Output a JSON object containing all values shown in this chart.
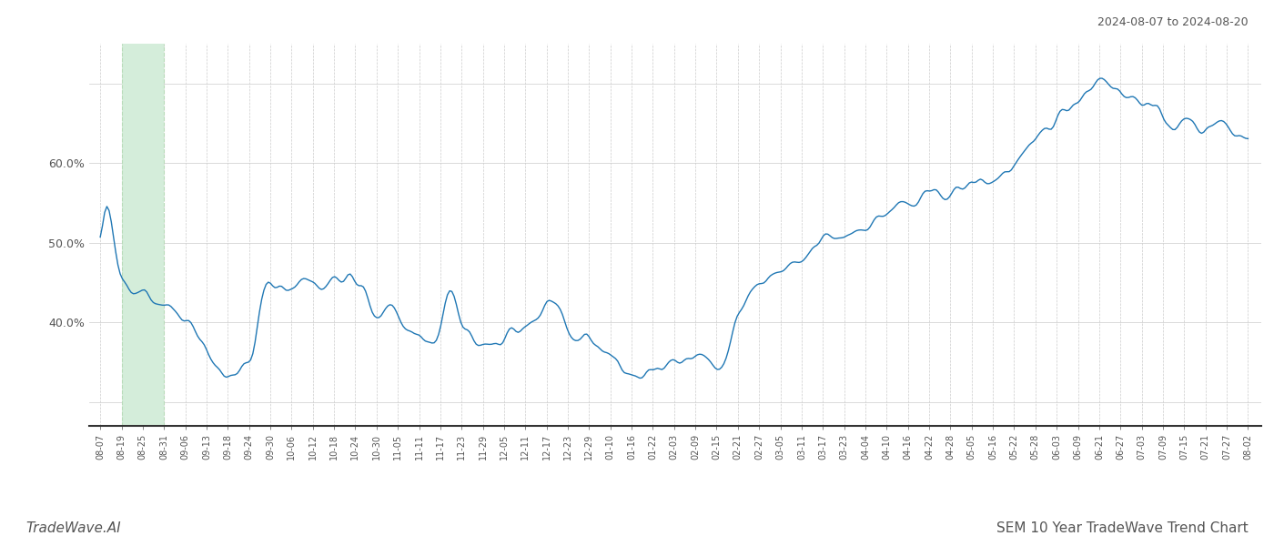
{
  "title_right": "2024-08-07 to 2024-08-20",
  "footer_left": "TradeWave.AI",
  "footer_right": "SEM 10 Year TradeWave Trend Chart",
  "line_color": "#1f77b4",
  "highlight_color": "#d4edda",
  "highlight_edge_color": "#b8dbb8",
  "background_color": "#ffffff",
  "grid_color": "#cccccc",
  "y_ticks": [
    0.3,
    0.4,
    0.5,
    0.6,
    0.7
  ],
  "y_labels": [
    "",
    "40.0%",
    "50.0%",
    "60.0%",
    ""
  ],
  "ylim": [
    0.27,
    0.75
  ],
  "x_tick_labels": [
    "08-07",
    "08-19",
    "08-25",
    "08-31",
    "09-06",
    "09-13",
    "09-18",
    "09-24",
    "09-30",
    "10-06",
    "10-12",
    "10-18",
    "10-24",
    "10-30",
    "11-05",
    "11-11",
    "11-17",
    "11-23",
    "11-29",
    "12-05",
    "12-11",
    "12-17",
    "12-23",
    "12-29",
    "01-10",
    "01-16",
    "01-22",
    "02-03",
    "02-09",
    "02-15",
    "02-21",
    "02-27",
    "03-05",
    "03-11",
    "03-17",
    "03-23",
    "04-04",
    "04-10",
    "04-16",
    "04-22",
    "04-28",
    "05-05",
    "05-16",
    "05-22",
    "05-28",
    "06-03",
    "06-09",
    "06-21",
    "06-27",
    "07-03",
    "07-09",
    "07-15",
    "07-21",
    "07-27",
    "08-02"
  ],
  "highlight_xstart": 1,
  "highlight_xend": 3,
  "values": [
    0.47,
    0.55,
    0.465,
    0.455,
    0.44,
    0.445,
    0.43,
    0.425,
    0.42,
    0.415,
    0.405,
    0.395,
    0.375,
    0.355,
    0.335,
    0.33,
    0.34,
    0.345,
    0.36,
    0.445,
    0.45,
    0.445,
    0.44,
    0.445,
    0.46,
    0.45,
    0.445,
    0.455,
    0.45,
    0.46,
    0.445,
    0.44,
    0.4,
    0.415,
    0.43,
    0.4,
    0.39,
    0.385,
    0.38,
    0.37,
    0.405,
    0.45,
    0.395,
    0.385,
    0.375,
    0.37,
    0.365,
    0.375,
    0.395,
    0.39,
    0.4,
    0.405,
    0.42,
    0.43,
    0.395,
    0.375,
    0.38,
    0.385,
    0.37,
    0.365,
    0.355,
    0.34,
    0.335,
    0.33,
    0.34,
    0.335,
    0.345,
    0.355,
    0.36,
    0.355,
    0.36,
    0.355,
    0.34,
    0.345,
    0.4,
    0.42,
    0.44,
    0.445,
    0.455,
    0.46,
    0.465,
    0.47,
    0.475,
    0.49,
    0.5,
    0.51,
    0.505,
    0.51,
    0.515,
    0.52,
    0.525,
    0.53,
    0.54,
    0.545,
    0.55,
    0.545,
    0.555,
    0.56,
    0.565,
    0.56,
    0.565,
    0.57,
    0.575,
    0.58,
    0.575,
    0.585,
    0.59,
    0.6,
    0.61,
    0.62,
    0.64,
    0.65,
    0.66,
    0.67,
    0.68,
    0.69,
    0.7,
    0.71,
    0.7,
    0.69,
    0.68,
    0.685,
    0.675,
    0.665,
    0.66,
    0.65,
    0.645,
    0.655,
    0.645,
    0.64,
    0.65,
    0.66,
    0.64,
    0.635,
    0.625
  ]
}
